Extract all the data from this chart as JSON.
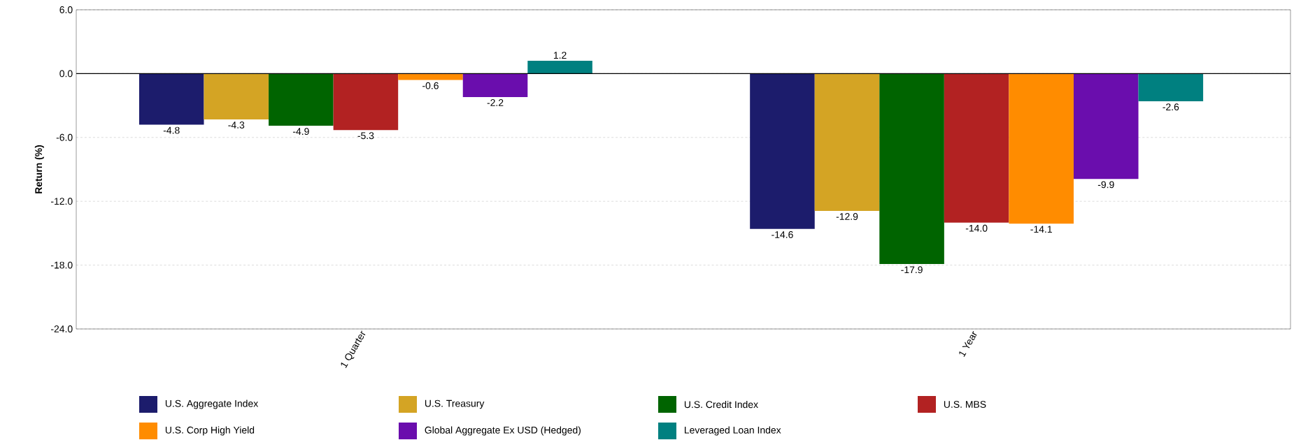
{
  "chart_data": {
    "type": "bar",
    "ylabel": "Return (%)",
    "categories": [
      "1 Quarter",
      "1 Year"
    ],
    "ylim": [
      -24,
      6
    ],
    "yticks": [
      {
        "value": -24,
        "label": "-24.0"
      },
      {
        "value": -18,
        "label": "-18.0"
      },
      {
        "value": -12,
        "label": "-12.0"
      },
      {
        "value": -6,
        "label": "-6.0"
      },
      {
        "value": 0,
        "label": "0.0"
      },
      {
        "value": 6,
        "label": "6.0"
      }
    ],
    "grid": "y",
    "legend": "bottom",
    "ref_lines": [
      {
        "axis": "y",
        "value": 0,
        "color": "#000000"
      }
    ],
    "series": [
      {
        "name": "U.S. Aggregate Index",
        "color": "#1c1c6c",
        "values": [
          -4.8,
          -14.6
        ],
        "value_labels": [
          "-4.8",
          "-14.6"
        ]
      },
      {
        "name": "U.S. Treasury",
        "color": "#d4a424",
        "values": [
          -4.3,
          -12.9
        ],
        "value_labels": [
          "-4.3",
          "-12.9"
        ]
      },
      {
        "name": "U.S. Credit Index",
        "color": "#006400",
        "values": [
          -4.9,
          -17.9
        ],
        "value_labels": [
          "-4.9",
          "-17.9"
        ]
      },
      {
        "name": "U.S. MBS",
        "color": "#b22222",
        "values": [
          -5.3,
          -14.0
        ],
        "value_labels": [
          "-5.3",
          "-14.0"
        ]
      },
      {
        "name": "U.S. Corp High Yield",
        "color": "#ff8c00",
        "values": [
          -0.6,
          -14.1
        ],
        "value_labels": [
          "-0.6",
          "-14.1"
        ]
      },
      {
        "name": "Global Aggregate Ex USD (Hedged)",
        "color": "#6a0dad",
        "values": [
          -2.2,
          -9.9
        ],
        "value_labels": [
          "-2.2",
          "-9.9"
        ]
      },
      {
        "name": "Leveraged Loan Index",
        "color": "#008080",
        "values": [
          1.2,
          -2.6
        ],
        "value_labels": [
          "1.2",
          "-2.6"
        ]
      }
    ]
  }
}
